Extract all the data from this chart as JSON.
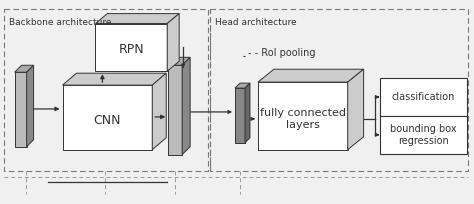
{
  "bg_color": "#f0f0f0",
  "white": "#ffffff",
  "light_gray": "#cccccc",
  "mid_gray": "#aaaaaa",
  "dark": "#333333",
  "backbone_label": "Backbone architecture",
  "head_label": "Head architecture",
  "rpn_label": "RPN",
  "cnn_label": "CNN",
  "fc_label": "fully connected\nlayers",
  "cls_label": "classification",
  "bbox_label": "bounding box\nregression",
  "roi_label": "- - RoI pooling",
  "fig_width": 4.74,
  "fig_height": 2.04
}
